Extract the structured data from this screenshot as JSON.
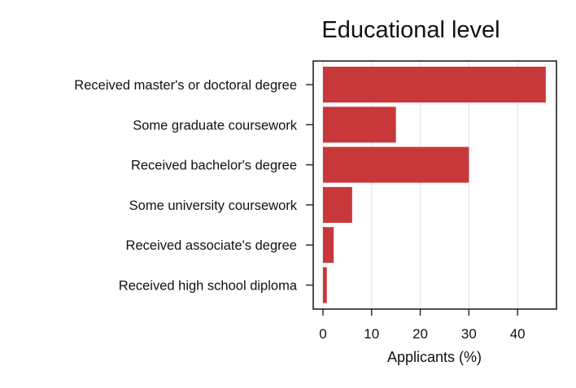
{
  "chart_data": {
    "type": "bar",
    "orientation": "horizontal",
    "title": "Educational level",
    "xlabel": "Applicants (%)",
    "ylabel": "",
    "categories": [
      "Received master's or doctoral degree",
      "Some graduate coursework",
      "Received bachelor's degree",
      "Some university coursework",
      "Received associate's degree",
      "Received high school diploma"
    ],
    "values": [
      45.8,
      15.0,
      30.0,
      6.0,
      2.2,
      0.8
    ],
    "xlim": [
      -2,
      48
    ],
    "xticks": [
      0,
      10,
      20,
      30,
      40
    ],
    "grid": "vertical",
    "bar_color": "#c8373a",
    "grid_color": "#e5e5e5",
    "axis_color": "#222222"
  }
}
